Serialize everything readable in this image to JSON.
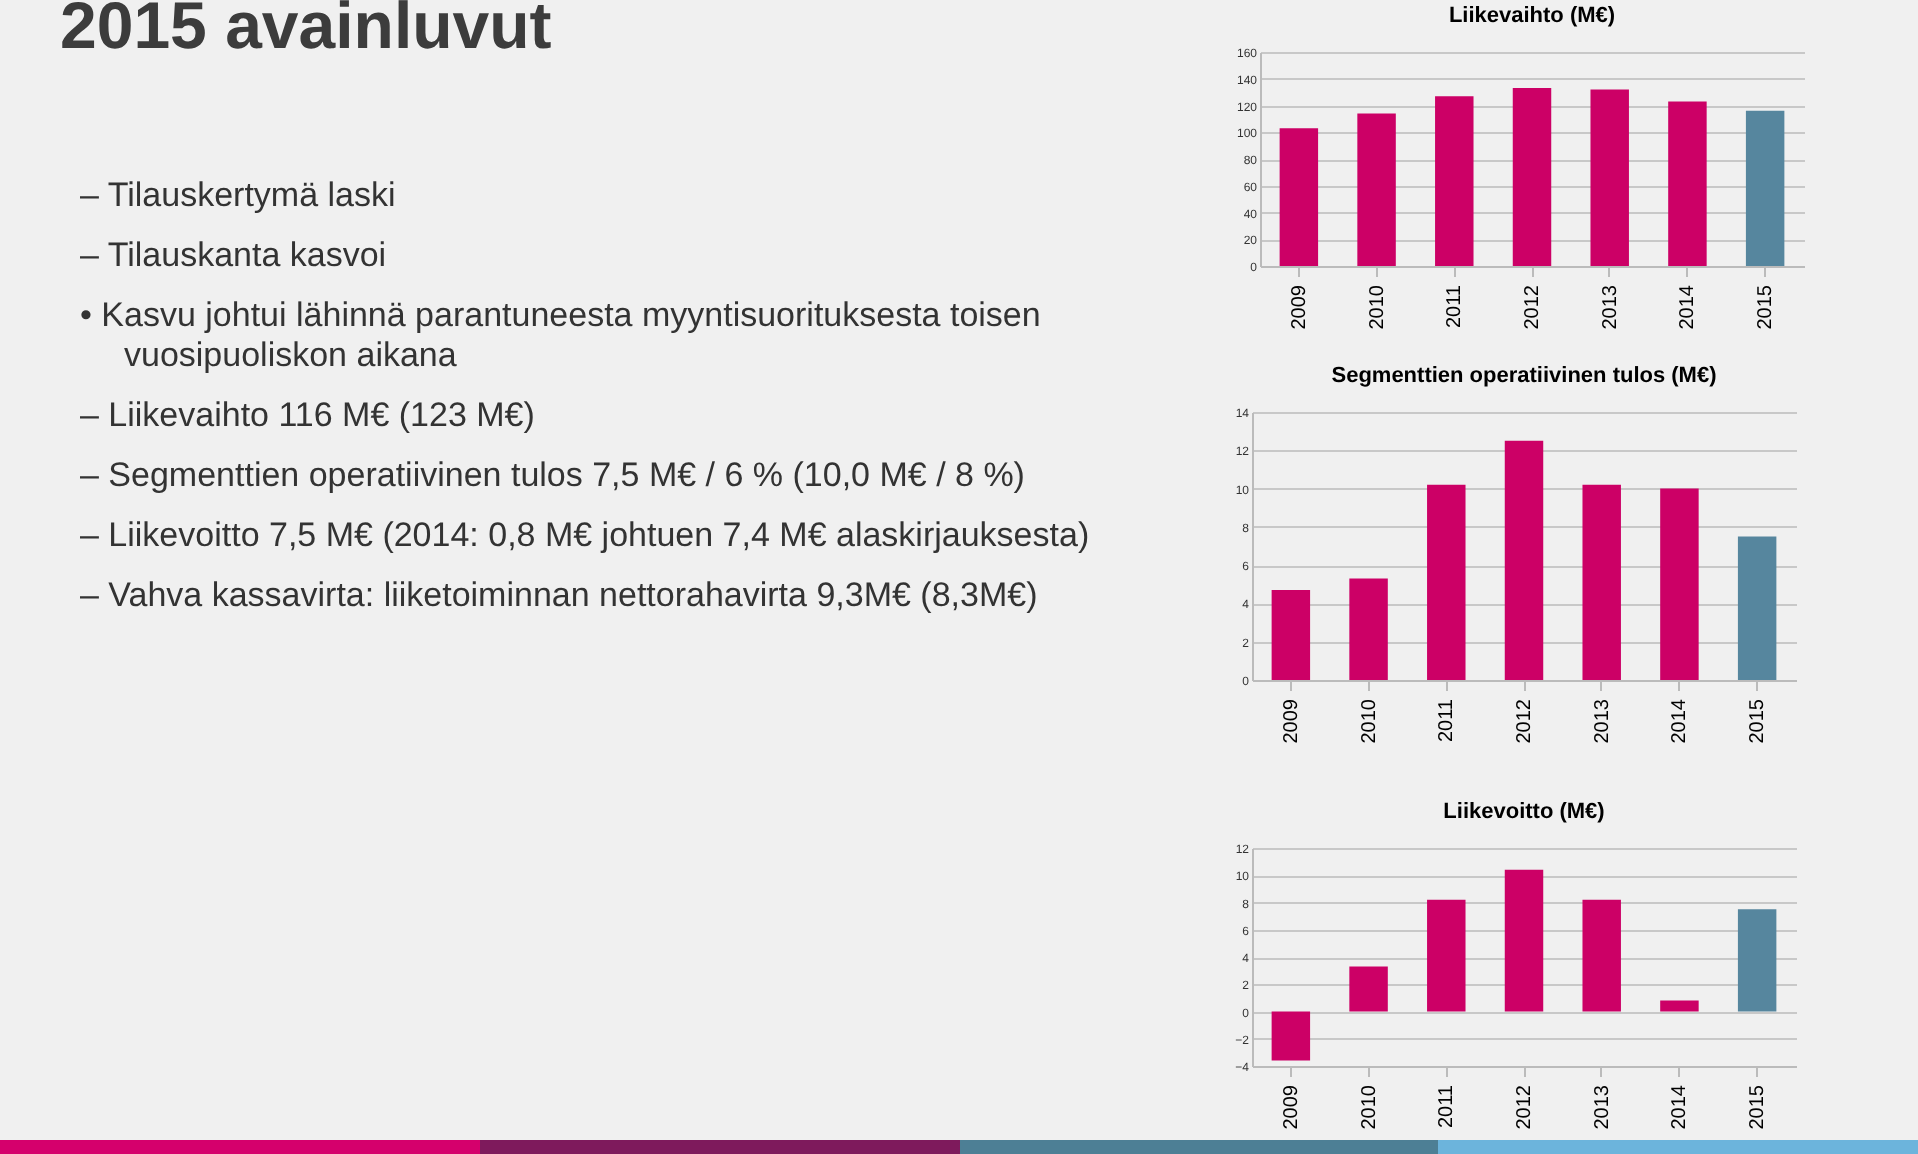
{
  "chart_data": [
    {
      "type": "other",
      "title": "2015 avainluvut",
      "annotations": [
        "– Tilauskertymä laski",
        "– Tilauskanta kasvoi",
        "• Kasvu johtui lähinnä parantuneesta myyntisuorituksesta toisen vuosipuoliskon aikana",
        "– Liikevaihto 116 M€ (123 M€)",
        "– Segmenttien operatiivinen tulos 7,5 M€ / 6 % (10,0 M€ / 8 %)",
        "– Liikevoitto 7,5 M€ (2014: 0,8 M€ johtuen 7,4 M€ alaskirjauksesta)",
        "– Vahva kassavirta: liiketoiminnan nettorahavirta 9,3M€ (8,3M€)"
      ]
    },
    {
      "type": "bar",
      "title": "Liikevaihto (M€)",
      "categories": [
        "2009",
        "2010",
        "2011",
        "2012",
        "2013",
        "2014",
        "2015"
      ],
      "values": [
        103,
        114,
        127,
        133,
        132,
        123,
        116
      ],
      "colors": [
        "#cc0066",
        "#cc0066",
        "#cc0066",
        "#cc0066",
        "#cc0066",
        "#cc0066",
        "#56869e"
      ],
      "ylim": [
        0,
        160
      ],
      "yticks": [
        0,
        20,
        40,
        60,
        80,
        100,
        120,
        140,
        160
      ],
      "grid": "y"
    },
    {
      "type": "bar",
      "title": "Segmenttien operatiivinen tulos (M€)",
      "categories": [
        "2009",
        "2010",
        "2011",
        "2012",
        "2013",
        "2014",
        "2015"
      ],
      "values": [
        4.7,
        5.3,
        10.2,
        12.5,
        10.2,
        10.0,
        7.5
      ],
      "colors": [
        "#cc0066",
        "#cc0066",
        "#cc0066",
        "#cc0066",
        "#cc0066",
        "#cc0066",
        "#56869e"
      ],
      "ylim": [
        0,
        14
      ],
      "yticks": [
        0,
        2,
        4,
        6,
        8,
        10,
        12,
        14
      ],
      "grid": "y"
    },
    {
      "type": "bar",
      "title": "Liikevoitto (M€)",
      "categories": [
        "2009",
        "2010",
        "2011",
        "2012",
        "2013",
        "2014",
        "2015"
      ],
      "values": [
        -3.6,
        3.3,
        8.2,
        10.4,
        8.2,
        0.8,
        7.5
      ],
      "colors": [
        "#cc0066",
        "#cc0066",
        "#cc0066",
        "#cc0066",
        "#cc0066",
        "#cc0066",
        "#56869e"
      ],
      "ylim": [
        -4,
        12
      ],
      "yticks": [
        -4,
        -2,
        0,
        2,
        4,
        6,
        8,
        10,
        12
      ],
      "grid": "y"
    }
  ]
}
